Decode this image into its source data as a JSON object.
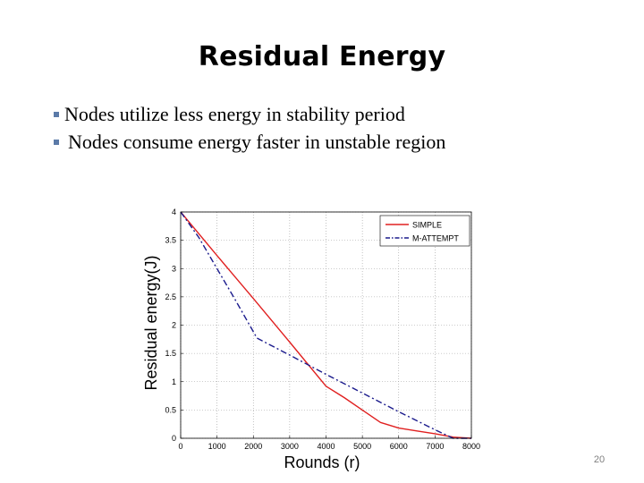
{
  "slide": {
    "title": "Residual Energy",
    "bullets": [
      "Nodes utilize less energy in stability period",
      "Nodes consume energy faster in unstable region"
    ],
    "page_number": "20",
    "bullet_color": "#5b7aa8"
  },
  "chart_data": {
    "type": "line",
    "title": "",
    "xlabel": "Rounds (r)",
    "ylabel": "Residual energy(J)",
    "xlim": [
      0,
      8000
    ],
    "ylim": [
      0,
      4
    ],
    "x_ticks": [
      0,
      1000,
      2000,
      3000,
      4000,
      5000,
      6000,
      7000,
      8000
    ],
    "y_ticks": [
      0,
      0.5,
      1,
      1.5,
      2,
      2.5,
      3,
      3.5,
      4
    ],
    "x_tick_labels": [
      "0",
      "1000",
      "2000",
      "3000",
      "4000",
      "5000",
      "6000",
      "7000",
      "8000"
    ],
    "y_tick_labels": [
      "0",
      "0.5",
      "1",
      "1.5",
      "2",
      "2.5",
      "3",
      "3.5",
      "4"
    ],
    "grid": true,
    "legend_position": "top-right",
    "series": [
      {
        "name": "SIMPLE",
        "color": "#e02020",
        "style": "solid",
        "x": [
          0,
          1000,
          2000,
          3000,
          4000,
          4500,
          5000,
          5500,
          6000,
          6500,
          7000,
          7500,
          8000
        ],
        "y": [
          4.0,
          3.23,
          2.47,
          1.7,
          0.92,
          0.72,
          0.5,
          0.28,
          0.18,
          0.13,
          0.08,
          0.02,
          0.0
        ]
      },
      {
        "name": "M-ATTEMPT",
        "color": "#1a1a8c",
        "style": "dashdot",
        "x": [
          0,
          500,
          1000,
          1500,
          2100,
          3000,
          4000,
          5000,
          6000,
          7000,
          7500,
          8000
        ],
        "y": [
          4.0,
          3.55,
          3.0,
          2.45,
          1.77,
          1.47,
          1.13,
          0.8,
          0.47,
          0.15,
          0.0,
          0.0
        ]
      }
    ]
  }
}
